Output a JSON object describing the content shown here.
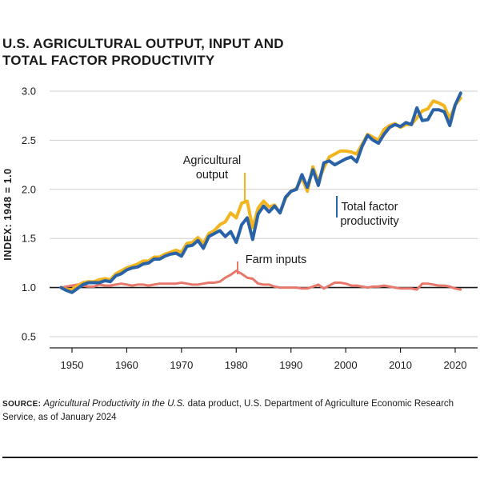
{
  "header": {
    "title_line1": "U.S. AGRICULTURAL OUTPUT, INPUT AND",
    "title_line2": "TOTAL FACTOR PRODUCTIVITY"
  },
  "source": {
    "label": "SOURCE:",
    "title": "Agricultural Productivity in the U.S.",
    "rest_line": " data product, U.S. Department of Agriculture Economic Research Service, as of January 2024"
  },
  "colors": {
    "output": "#f2b51d",
    "tfp": "#2a62a8",
    "inputs": "#e8776b",
    "axis": "#1a1a1a",
    "grid": "#cfcfcf"
  },
  "chart_data": {
    "type": "line",
    "title": "U.S. AGRICULTURAL OUTPUT, INPUT AND TOTAL FACTOR PRODUCTIVITY",
    "xlabel": "",
    "ylabel": "INDEX: 1948 = 1.0",
    "xlim": [
      1946,
      2024
    ],
    "ylim": [
      0.4,
      3.1
    ],
    "y_ticks": [
      {
        "value": 0.5,
        "label": "0.5"
      },
      {
        "value": 1.0,
        "label": "1.0"
      },
      {
        "value": 1.5,
        "label": "1.5"
      },
      {
        "value": 2.0,
        "label": "2.0"
      },
      {
        "value": 2.5,
        "label": "2.5"
      },
      {
        "value": 3.0,
        "label": "3.0"
      }
    ],
    "x_ticks": [
      {
        "value": 1950,
        "label": "1950"
      },
      {
        "value": 1960,
        "label": "1960"
      },
      {
        "value": 1970,
        "label": "1970"
      },
      {
        "value": 1980,
        "label": "1980"
      },
      {
        "value": 1990,
        "label": "1990"
      },
      {
        "value": 2000,
        "label": "2000"
      },
      {
        "value": 2010,
        "label": "2010"
      },
      {
        "value": 2020,
        "label": "2020"
      }
    ],
    "x": [
      1948,
      1949,
      1950,
      1951,
      1952,
      1953,
      1954,
      1955,
      1956,
      1957,
      1958,
      1959,
      1960,
      1961,
      1962,
      1963,
      1964,
      1965,
      1966,
      1967,
      1968,
      1969,
      1970,
      1971,
      1972,
      1973,
      1974,
      1975,
      1976,
      1977,
      1978,
      1979,
      1980,
      1981,
      1982,
      1983,
      1984,
      1985,
      1986,
      1987,
      1988,
      1989,
      1990,
      1991,
      1992,
      1993,
      1994,
      1995,
      1996,
      1997,
      1998,
      1999,
      2000,
      2001,
      2002,
      2003,
      2004,
      2005,
      2006,
      2007,
      2008,
      2009,
      2010,
      2011,
      2012,
      2013,
      2014,
      2015,
      2016,
      2017,
      2018,
      2019,
      2020,
      2021
    ],
    "series": [
      {
        "name": "Agricultural output",
        "label_lines": [
          "Agricultural",
          "output"
        ],
        "color_key": "output",
        "values": [
          1.0,
          0.98,
          0.98,
          1.02,
          1.05,
          1.06,
          1.06,
          1.08,
          1.09,
          1.08,
          1.14,
          1.17,
          1.2,
          1.22,
          1.24,
          1.27,
          1.27,
          1.31,
          1.31,
          1.34,
          1.36,
          1.38,
          1.36,
          1.45,
          1.46,
          1.51,
          1.45,
          1.55,
          1.58,
          1.64,
          1.67,
          1.76,
          1.71,
          1.86,
          1.88,
          1.61,
          1.81,
          1.88,
          1.82,
          1.84,
          1.76,
          1.91,
          1.98,
          2.01,
          2.12,
          1.98,
          2.23,
          2.08,
          2.22,
          2.33,
          2.36,
          2.39,
          2.39,
          2.38,
          2.36,
          2.46,
          2.56,
          2.53,
          2.5,
          2.61,
          2.65,
          2.67,
          2.63,
          2.66,
          2.66,
          2.73,
          2.8,
          2.82,
          2.9,
          2.88,
          2.85,
          2.72,
          2.86,
          2.93
        ]
      },
      {
        "name": "Total factor productivity",
        "label_lines": [
          "Total factor",
          "productivity"
        ],
        "color_key": "tfp",
        "values": [
          1.0,
          0.97,
          0.95,
          0.99,
          1.03,
          1.05,
          1.05,
          1.05,
          1.07,
          1.06,
          1.12,
          1.14,
          1.18,
          1.2,
          1.21,
          1.24,
          1.25,
          1.29,
          1.29,
          1.32,
          1.34,
          1.35,
          1.32,
          1.42,
          1.43,
          1.48,
          1.4,
          1.52,
          1.55,
          1.58,
          1.52,
          1.57,
          1.46,
          1.64,
          1.71,
          1.49,
          1.75,
          1.83,
          1.77,
          1.83,
          1.76,
          1.92,
          1.98,
          2.0,
          2.15,
          2.02,
          2.2,
          2.04,
          2.27,
          2.29,
          2.25,
          2.28,
          2.31,
          2.33,
          2.28,
          2.44,
          2.55,
          2.5,
          2.47,
          2.56,
          2.63,
          2.66,
          2.64,
          2.68,
          2.66,
          2.83,
          2.7,
          2.71,
          2.81,
          2.81,
          2.79,
          2.65,
          2.86,
          2.98
        ]
      },
      {
        "name": "Farm inputs",
        "label_lines": [
          "Farm inputs"
        ],
        "color_key": "inputs",
        "values": [
          1.0,
          1.01,
          1.02,
          1.03,
          1.02,
          1.01,
          1.01,
          1.03,
          1.02,
          1.02,
          1.03,
          1.04,
          1.03,
          1.02,
          1.03,
          1.03,
          1.02,
          1.03,
          1.04,
          1.04,
          1.04,
          1.04,
          1.05,
          1.04,
          1.03,
          1.03,
          1.04,
          1.05,
          1.05,
          1.06,
          1.1,
          1.13,
          1.17,
          1.14,
          1.1,
          1.09,
          1.04,
          1.03,
          1.03,
          1.01,
          1.0,
          1.0,
          1.0,
          1.0,
          0.99,
          0.99,
          1.01,
          1.03,
          0.99,
          1.02,
          1.05,
          1.05,
          1.04,
          1.02,
          1.02,
          1.01,
          1.0,
          1.01,
          1.01,
          1.02,
          1.01,
          1.0,
          0.99,
          0.99,
          0.99,
          0.98,
          1.04,
          1.04,
          1.03,
          1.02,
          1.02,
          1.01,
          0.99,
          0.98
        ]
      }
    ]
  }
}
